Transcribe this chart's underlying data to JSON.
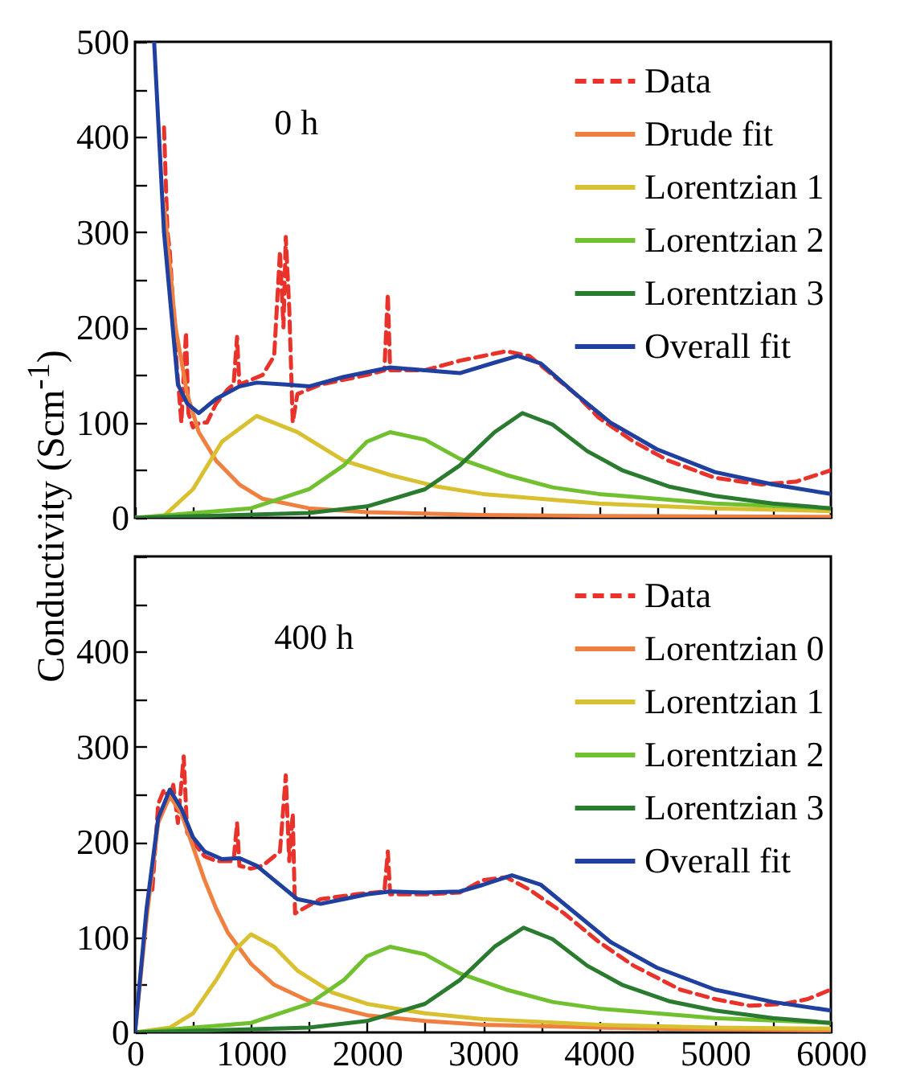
{
  "chart_data": [
    {
      "type": "line",
      "ylabel": "Conductivity (Scm$^{-1}$)",
      "annotations": [
        "0 h"
      ],
      "xlim": [
        0,
        6000
      ],
      "ylim": [
        0,
        500
      ],
      "xticks": [
        0,
        {
          "value": 500,
          "label": null
        },
        1000,
        {
          "value": 1500,
          "label": null
        },
        2000,
        {
          "value": 2500,
          "label": null
        },
        3000,
        {
          "value": 3500,
          "label": null
        },
        4000,
        {
          "value": 4500,
          "label": null
        },
        5000,
        {
          "value": 5500,
          "label": null
        },
        6000
      ],
      "yticks": [
        0,
        {
          "value": 50,
          "label": null
        },
        100,
        {
          "value": 150,
          "label": null
        },
        200,
        {
          "value": 250,
          "label": null
        },
        300,
        {
          "value": 350,
          "label": null
        },
        400,
        {
          "value": 450,
          "label": null
        },
        500
      ],
      "tick_labels": "y",
      "legend": "top right",
      "series": [
        {
          "name": "Data",
          "color": "#e8322a",
          "line_style": "dashed",
          "x": [
            250,
            280,
            300,
            330,
            360,
            380,
            400,
            420,
            440,
            460,
            500,
            560,
            620,
            700,
            800,
            850,
            880,
            900,
            1000,
            1100,
            1200,
            1250,
            1280,
            1300,
            1330,
            1360,
            1400,
            1600,
            1800,
            2000,
            2150,
            2180,
            2200,
            2500,
            2800,
            3000,
            3200,
            3400,
            3600,
            3800,
            4000,
            4300,
            4600,
            5000,
            5400,
            5700,
            6000
          ],
          "values": [
            410,
            300,
            280,
            220,
            160,
            130,
            100,
            150,
            195,
            110,
            95,
            100,
            100,
            120,
            135,
            140,
            190,
            140,
            145,
            150,
            170,
            280,
            200,
            295,
            220,
            100,
            130,
            140,
            145,
            150,
            155,
            235,
            155,
            155,
            165,
            170,
            175,
            170,
            150,
            130,
            105,
            80,
            60,
            42,
            35,
            38,
            50
          ]
        },
        {
          "name": "Drude fit",
          "color": "#f08040",
          "x": [
            250,
            350,
            450,
            550,
            700,
            900,
            1100,
            1500,
            2000,
            3000,
            4000,
            6000
          ],
          "values": [
            330,
            200,
            130,
            90,
            60,
            35,
            20,
            10,
            6,
            3,
            2,
            1
          ]
        },
        {
          "name": "Lorentzian 1",
          "color": "#d9c030",
          "x": [
            0,
            250,
            500,
            750,
            1050,
            1400,
            1800,
            2200,
            2600,
            3000,
            4000,
            5000,
            6000
          ],
          "values": [
            0,
            2,
            30,
            80,
            107,
            90,
            60,
            45,
            33,
            25,
            15,
            10,
            7
          ]
        },
        {
          "name": "Lorentzian 2",
          "color": "#70c030",
          "x": [
            0,
            1000,
            1500,
            1800,
            2000,
            2200,
            2500,
            2800,
            3200,
            3600,
            4000,
            5000,
            6000
          ],
          "values": [
            0,
            10,
            30,
            55,
            80,
            90,
            82,
            62,
            45,
            32,
            25,
            15,
            10
          ]
        },
        {
          "name": "Lorentzian 3",
          "color": "#2a7a30",
          "x": [
            0,
            1500,
            2000,
            2500,
            2800,
            3100,
            3340,
            3600,
            3900,
            4200,
            4600,
            5000,
            5500,
            6000
          ],
          "values": [
            0,
            5,
            12,
            30,
            55,
            90,
            110,
            98,
            70,
            50,
            33,
            23,
            15,
            10
          ]
        },
        {
          "name": "Overall fit",
          "color": "#2040a0",
          "x": [
            165,
            250,
            370,
            450,
            550,
            700,
            900,
            1050,
            1300,
            1500,
            1800,
            2200,
            2500,
            2800,
            3100,
            3300,
            3500,
            3800,
            4100,
            4500,
            5000,
            5500,
            6000
          ],
          "values": [
            500,
            300,
            140,
            120,
            110,
            125,
            138,
            142,
            140,
            138,
            148,
            158,
            155,
            152,
            163,
            170,
            162,
            130,
            100,
            72,
            48,
            35,
            25
          ]
        }
      ]
    },
    {
      "type": "line",
      "annotations": [
        "400 h"
      ],
      "xlim": [
        0,
        6000
      ],
      "ylim": [
        0,
        500
      ],
      "xticks": [
        0,
        {
          "value": 500,
          "label": null
        },
        1000,
        {
          "value": 1500,
          "label": null
        },
        2000,
        {
          "value": 2500,
          "label": null
        },
        3000,
        {
          "value": 3500,
          "label": null
        },
        4000,
        {
          "value": 4500,
          "label": null
        },
        5000,
        {
          "value": 5500,
          "label": null
        },
        6000
      ],
      "yticks": [
        0,
        {
          "value": 50,
          "label": null
        },
        100,
        {
          "value": 150,
          "label": null
        },
        200,
        {
          "value": 250,
          "label": null
        },
        300,
        {
          "value": 350,
          "label": null
        },
        400,
        {
          "value": 450,
          "label": null
        },
        {
          "value": 500,
          "label": null
        }
      ],
      "legend": "top right",
      "series": [
        {
          "name": "Data",
          "color": "#e8322a",
          "line_style": "dashed",
          "x": [
            150,
            200,
            250,
            300,
            330,
            370,
            420,
            450,
            500,
            600,
            700,
            850,
            880,
            900,
            1000,
            1100,
            1200,
            1250,
            1300,
            1330,
            1360,
            1380,
            1450,
            1600,
            1900,
            2150,
            2180,
            2200,
            2500,
            2800,
            3000,
            3200,
            3400,
            3700,
            4000,
            4300,
            4700,
            5000,
            5300,
            5600,
            5800,
            6000
          ],
          "values": [
            150,
            240,
            255,
            245,
            260,
            220,
            290,
            210,
            200,
            185,
            180,
            180,
            220,
            175,
            172,
            175,
            185,
            190,
            270,
            180,
            230,
            125,
            130,
            140,
            145,
            148,
            190,
            145,
            145,
            147,
            160,
            163,
            150,
            125,
            95,
            70,
            45,
            35,
            28,
            30,
            35,
            45
          ]
        },
        {
          "name": "Lorentzian 0",
          "color": "#f08040",
          "x": [
            0,
            100,
            200,
            300,
            400,
            500,
            600,
            700,
            800,
            1000,
            1200,
            1500,
            2000,
            2500,
            3000,
            4000,
            5000,
            6000
          ],
          "values": [
            0,
            120,
            220,
            248,
            230,
            195,
            160,
            130,
            105,
            72,
            50,
            33,
            18,
            12,
            8,
            5,
            3,
            2
          ]
        },
        {
          "name": "Lorentzian 1",
          "color": "#d9c030",
          "x": [
            0,
            300,
            500,
            700,
            850,
            1000,
            1200,
            1400,
            1700,
            2000,
            2500,
            3000,
            4000,
            5000,
            6000
          ],
          "values": [
            0,
            5,
            20,
            55,
            85,
            103,
            90,
            65,
            42,
            30,
            20,
            14,
            8,
            5,
            4
          ]
        },
        {
          "name": "Lorentzian 2",
          "color": "#70c030",
          "x": [
            0,
            1000,
            1500,
            1800,
            2000,
            2200,
            2500,
            2800,
            3200,
            3600,
            4000,
            5000,
            6000
          ],
          "values": [
            0,
            10,
            30,
            55,
            80,
            90,
            82,
            62,
            45,
            32,
            25,
            15,
            10
          ]
        },
        {
          "name": "Lorentzian 3",
          "color": "#2a7a30",
          "x": [
            0,
            1500,
            2000,
            2500,
            2800,
            3100,
            3350,
            3600,
            3900,
            4200,
            4600,
            5000,
            5500,
            6000
          ],
          "values": [
            0,
            5,
            12,
            30,
            55,
            90,
            110,
            98,
            70,
            50,
            33,
            23,
            15,
            10
          ]
        },
        {
          "name": "Overall fit",
          "color": "#2040a0",
          "x": [
            0,
            100,
            200,
            300,
            400,
            500,
            600,
            750,
            900,
            1050,
            1200,
            1400,
            1600,
            1800,
            2000,
            2200,
            2500,
            2800,
            3000,
            3250,
            3500,
            3800,
            4100,
            4500,
            5000,
            5500,
            6000
          ],
          "values": [
            0,
            130,
            225,
            255,
            235,
            205,
            190,
            182,
            183,
            175,
            160,
            140,
            135,
            140,
            145,
            148,
            147,
            148,
            155,
            165,
            155,
            125,
            95,
            68,
            45,
            32,
            23
          ]
        }
      ]
    }
  ]
}
